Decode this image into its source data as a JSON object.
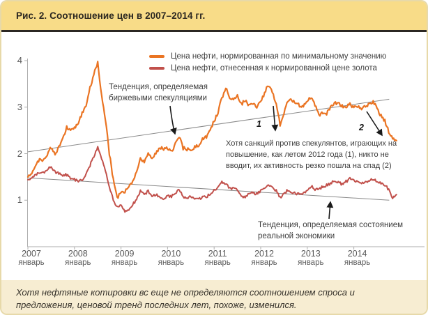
{
  "card": {
    "title": "Рис. 2. Соотношение цен в 2007–2014 гг.",
    "footer": "Хотя нефтяные котировки вс еще не определяются соотношением спроса и предложения, ценовой тренд последних лет, похоже, изменился."
  },
  "annotations": {
    "speculation": "Тенденция, определяемая биржевыми спекуляциями",
    "sanctions": "Хотя санкций против спекулянтов, играющих на повышение, как летом 2012 года (1), никто не вводит, их активность резко пошла на спад (2)",
    "real_economy": "Тенденция, определяемая состоянием реальной экономики",
    "marker1": "1",
    "marker2": "2"
  },
  "colors": {
    "header_bg": "#f8dc88",
    "footer_bg": "#f7edd2",
    "axis": "#aeaeae",
    "trendline": "#8a8a8a",
    "arrow": "#1a1a1a",
    "oil_normalized": "#ea7423",
    "oil_to_gold": "#c1504b"
  },
  "chart_data": {
    "type": "line",
    "start": "2007-01",
    "frequency": "monthly",
    "ylim": [
      0,
      4
    ],
    "y_ticks": [
      4,
      3,
      2,
      1
    ],
    "grid": false,
    "legend_position": "top",
    "x_ticks": [
      {
        "year": "2007",
        "month": "январь"
      },
      {
        "year": "2008",
        "month": "январь"
      },
      {
        "year": "2009",
        "month": "январь"
      },
      {
        "year": "2010",
        "month": "январь"
      },
      {
        "year": "2011",
        "month": "январь"
      },
      {
        "year": "2012",
        "month": "январь"
      },
      {
        "year": "2013",
        "month": "январь"
      },
      {
        "year": "2014",
        "month": "январь"
      }
    ],
    "series": [
      {
        "name": "Цена нефти, нормированная по минимальному значению",
        "color": "#ea7423",
        "values": [
          1.5,
          1.6,
          1.72,
          1.88,
          1.87,
          1.98,
          2.14,
          1.97,
          2.15,
          2.3,
          2.56,
          2.52,
          2.56,
          2.64,
          2.88,
          3.05,
          3.42,
          3.7,
          3.95,
          3.25,
          2.75,
          2.0,
          1.45,
          1.05,
          1.15,
          1.18,
          1.3,
          1.4,
          1.6,
          1.9,
          1.8,
          2.0,
          1.88,
          2.02,
          2.14,
          2.08,
          2.12,
          2.06,
          2.2,
          2.36,
          2.12,
          2.09,
          2.09,
          2.14,
          2.17,
          2.31,
          2.37,
          2.53,
          2.7,
          2.89,
          3.2,
          3.41,
          3.2,
          3.17,
          3.26,
          3.06,
          3.14,
          3.03,
          3.09,
          3.01,
          3.09,
          3.31,
          3.48,
          3.34,
          3.06,
          2.62,
          2.87,
          3.14,
          3.14,
          3.11,
          3.03,
          3.03,
          3.14,
          3.23,
          3.03,
          2.84,
          2.87,
          2.87,
          3.0,
          3.09,
          3.09,
          3.03,
          3.0,
          3.06,
          3.0,
          3.03,
          2.98,
          3.0,
          3.06,
          3.11,
          2.98,
          2.81,
          2.7,
          2.48,
          2.32,
          2.28
        ]
      },
      {
        "name": "Цена нефти, отнесенная к нормированной цене золота",
        "color": "#c1504b",
        "values": [
          1.44,
          1.48,
          1.53,
          1.6,
          1.6,
          1.65,
          1.72,
          1.6,
          1.58,
          1.52,
          1.55,
          1.48,
          1.45,
          1.4,
          1.45,
          1.55,
          1.75,
          1.95,
          2.15,
          1.9,
          1.65,
          1.28,
          1.02,
          0.85,
          0.9,
          0.76,
          0.8,
          0.9,
          1.02,
          1.2,
          1.12,
          1.2,
          1.1,
          1.12,
          1.08,
          1.04,
          1.1,
          1.08,
          1.16,
          1.22,
          1.08,
          1.05,
          1.07,
          1.05,
          1.02,
          1.08,
          1.08,
          1.12,
          1.22,
          1.28,
          1.38,
          1.36,
          1.25,
          1.26,
          1.24,
          1.06,
          1.08,
          1.12,
          1.16,
          1.14,
          1.2,
          1.26,
          1.34,
          1.28,
          1.2,
          1.05,
          1.14,
          1.22,
          1.15,
          1.15,
          1.13,
          1.15,
          1.22,
          1.3,
          1.24,
          1.22,
          1.3,
          1.32,
          1.36,
          1.42,
          1.38,
          1.34,
          1.4,
          1.46,
          1.43,
          1.4,
          1.36,
          1.38,
          1.42,
          1.46,
          1.41,
          1.35,
          1.33,
          1.22,
          1.06,
          1.12
        ]
      }
    ],
    "trendlines": [
      {
        "name": "speculative-trend",
        "from_year": 0,
        "from_value": 2.04,
        "to_year": 7.76,
        "to_value": 3.17
      },
      {
        "name": "real-economy-trend",
        "from_year": 0,
        "from_value": 1.48,
        "to_year": 7.76,
        "to_value": 1.0
      }
    ]
  }
}
